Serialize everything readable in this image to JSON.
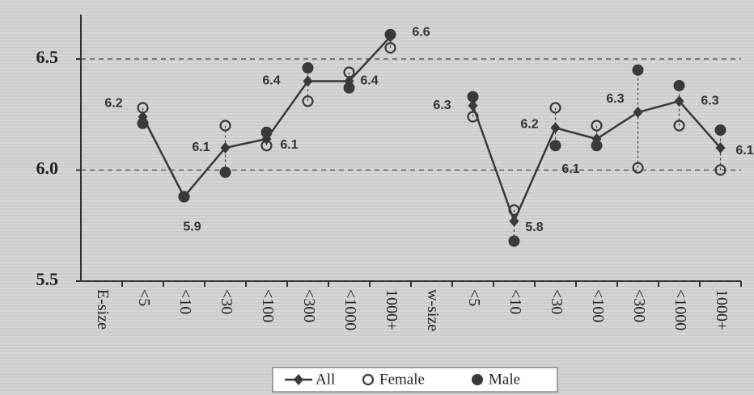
{
  "chart_data": {
    "type": "line",
    "categories": [
      "E-size",
      "<5",
      "<10",
      "<30",
      "<100",
      "<300",
      "<1000",
      "1000+",
      "w-size",
      "<5",
      "<10",
      "<30",
      "<100",
      "<300",
      "<1000",
      "1000+"
    ],
    "series": [
      {
        "name": "All",
        "color": "#3a3a3a",
        "marker": "diamond",
        "values": [
          null,
          6.24,
          5.88,
          6.1,
          6.14,
          6.4,
          6.4,
          6.6,
          null,
          6.29,
          5.77,
          6.19,
          6.14,
          6.26,
          6.31,
          6.1
        ],
        "value_labels": [
          null,
          "6.2",
          "5.9",
          "6.1",
          "6.1",
          "6.4",
          "6.4",
          "6.6",
          null,
          "6.3",
          "5.8",
          "6.2",
          "6.1",
          "6.3",
          "6.3",
          "6.1"
        ]
      },
      {
        "name": "Female",
        "color": "#3a3a3a",
        "marker": "open-circle",
        "values": [
          null,
          6.28,
          5.88,
          6.2,
          6.11,
          6.31,
          6.44,
          6.55,
          null,
          6.24,
          5.82,
          6.28,
          6.2,
          6.01,
          6.2,
          6.0
        ]
      },
      {
        "name": "Male",
        "color": "#3a3a3a",
        "marker": "filled-circle",
        "values": [
          null,
          6.21,
          5.88,
          5.99,
          6.17,
          6.46,
          6.37,
          6.61,
          null,
          6.33,
          5.68,
          6.11,
          6.11,
          6.45,
          6.38,
          6.18
        ]
      }
    ],
    "ylim": [
      5.5,
      6.7
    ],
    "yticks": [
      5.5,
      {
        "value": 6,
        "label": "6.0"
      },
      6.5
    ],
    "grid": true
  }
}
